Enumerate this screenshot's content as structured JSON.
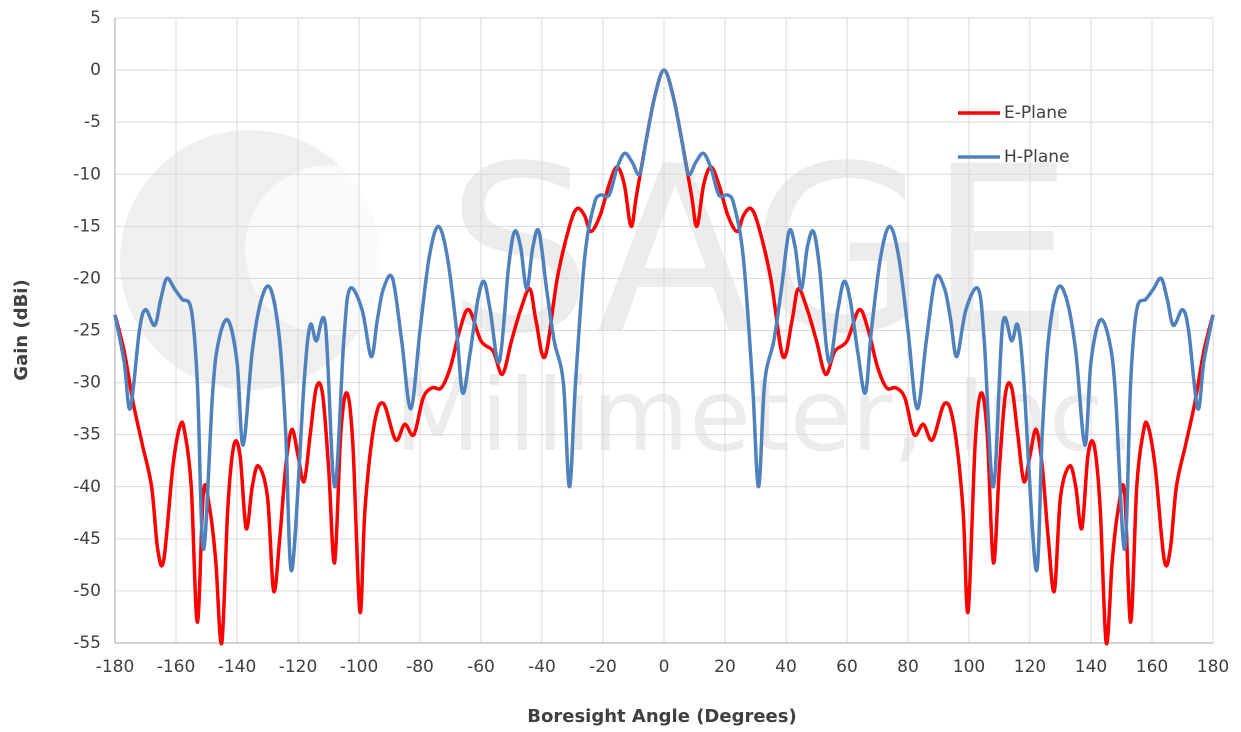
{
  "chart_data": {
    "type": "line",
    "y_label": "Gain (dBi)",
    "x_label": "Boresight Angle (Degrees)",
    "watermark": [
      "SAGE",
      "Millimeter, Inc."
    ],
    "xlim": [
      -180,
      180
    ],
    "xticks": [
      -180,
      -160,
      -140,
      -120,
      -100,
      -80,
      -60,
      -40,
      -20,
      0,
      20,
      40,
      60,
      80,
      100,
      120,
      140,
      160,
      180
    ],
    "ylim": [
      -55,
      5
    ],
    "yticks": [
      5,
      0,
      -5,
      -10,
      -15,
      -20,
      -25,
      -30,
      -35,
      -40,
      -45,
      -50,
      -55
    ],
    "grid": true,
    "legend": "upper right",
    "series": [
      {
        "name": "E-Plane",
        "color": "#ff0000",
        "x": [
          -180,
          -177,
          -174,
          -171,
          -168,
          -166,
          -164,
          -161,
          -158.5,
          -157,
          -155,
          -153,
          -151,
          -149,
          -147,
          -145,
          -143,
          -141,
          -139,
          -137,
          -135,
          -133,
          -130,
          -128,
          -126,
          -124,
          -122,
          -120,
          -118,
          -116,
          -114,
          -112,
          -110,
          -108,
          -106,
          -104,
          -102,
          -99.7,
          -98,
          -95,
          -92,
          -88,
          -85,
          -82,
          -79,
          -76,
          -73,
          -70,
          -67,
          -64,
          -60,
          -56,
          -53,
          -50,
          -47,
          -44,
          -42,
          -39,
          -35,
          -31,
          -28.5,
          -26,
          -24,
          -21,
          -18,
          -15.4,
          -13,
          -10.8,
          -9,
          -6,
          -3,
          0,
          3,
          6,
          9,
          10.8,
          13,
          15.4,
          18,
          21,
          24,
          26,
          28.5,
          31,
          35,
          39,
          42,
          44,
          47,
          50,
          53,
          56,
          60,
          64,
          67,
          70,
          73,
          76,
          79,
          82,
          85,
          88,
          92,
          95,
          98,
          99.7,
          102,
          104,
          106,
          108,
          110,
          112,
          114,
          116,
          118,
          120,
          122,
          124,
          126,
          128,
          130,
          133,
          135,
          137,
          139,
          141,
          143,
          145,
          147,
          149,
          151,
          153,
          155,
          157,
          158.5,
          161,
          164,
          166,
          168,
          171,
          174,
          177,
          180
        ],
        "values": [
          -23.5,
          -27,
          -32,
          -36,
          -40,
          -46,
          -47,
          -38,
          -34,
          -35,
          -40,
          -53,
          -40.5,
          -42,
          -47,
          -55,
          -42,
          -36,
          -37,
          -44,
          -40,
          -38,
          -41,
          -50,
          -45,
          -38,
          -34.5,
          -37,
          -39.5,
          -35,
          -30.5,
          -31,
          -38,
          -47.3,
          -35,
          -31,
          -36,
          -52,
          -42,
          -34,
          -32,
          -35.5,
          -34,
          -35,
          -31.5,
          -30.5,
          -30.5,
          -28.5,
          -25,
          -23,
          -26,
          -27,
          -29.2,
          -26,
          -23,
          -21,
          -24,
          -27.5,
          -20,
          -15,
          -13.3,
          -14,
          -15.5,
          -14,
          -11,
          -9.3,
          -11,
          -15,
          -12,
          -7,
          -2.5,
          0,
          -2.5,
          -7,
          -12,
          -15,
          -11,
          -9.3,
          -11,
          -14,
          -15.5,
          -14,
          -13.3,
          -15,
          -20,
          -27.5,
          -24,
          -21,
          -23,
          -26,
          -29.2,
          -27,
          -26,
          -23,
          -25,
          -28.5,
          -30.5,
          -30.5,
          -31.5,
          -35,
          -34,
          -35.5,
          -32,
          -34,
          -42,
          -52,
          -36,
          -31,
          -35,
          -47.3,
          -38,
          -31,
          -30.5,
          -35,
          -39.5,
          -37,
          -34.5,
          -38,
          -45,
          -50,
          -41,
          -38,
          -40,
          -44,
          -37,
          -36,
          -42,
          -55,
          -47,
          -42,
          -40.5,
          -53,
          -40,
          -35,
          -34,
          -38,
          -47,
          -46,
          -40,
          -36,
          -32,
          -27,
          -23.5
        ]
      },
      {
        "name": "H-Plane",
        "color": "#4f81bd",
        "x": [
          -180,
          -177,
          -175,
          -172,
          -170,
          -167,
          -165,
          -163,
          -160.5,
          -158,
          -155,
          -153,
          -151,
          -148,
          -146,
          -143,
          -140,
          -138,
          -135,
          -132,
          -129,
          -126,
          -124,
          -122,
          -118,
          -116,
          -114,
          -111,
          -108,
          -105,
          -103,
          -99,
          -96,
          -94,
          -92,
          -89,
          -86,
          -83,
          -80,
          -77,
          -74,
          -71,
          -68,
          -66,
          -63.5,
          -61,
          -59,
          -57,
          -54,
          -51,
          -49,
          -47,
          -45,
          -43,
          -41,
          -38.5,
          -36,
          -33,
          -31,
          -29,
          -26,
          -23,
          -21,
          -18,
          -15.5,
          -13,
          -10.5,
          -8,
          -6,
          -3,
          0,
          3,
          6,
          8,
          10.5,
          13,
          15.5,
          18,
          21,
          23,
          26,
          29,
          31,
          33,
          36,
          38.5,
          41,
          43,
          45,
          47,
          49,
          51,
          54,
          57,
          59,
          61,
          63.5,
          66,
          68,
          71,
          74,
          77,
          80,
          83,
          86,
          89,
          92,
          94,
          96,
          99,
          103,
          105,
          108,
          111,
          114,
          116,
          118,
          122,
          124,
          126,
          129,
          132,
          135,
          138,
          140,
          143,
          146,
          148,
          151,
          153,
          155,
          158,
          160.5,
          163,
          165,
          167,
          170,
          172,
          175,
          177,
          180
        ],
        "values": [
          -23.5,
          -28,
          -32.5,
          -25,
          -23,
          -24.5,
          -22,
          -20,
          -21,
          -22,
          -23,
          -30,
          -46,
          -31,
          -26,
          -24,
          -28,
          -36,
          -27,
          -22,
          -21,
          -26,
          -35,
          -48,
          -30,
          -24.5,
          -26,
          -24.5,
          -40,
          -26,
          -21,
          -23,
          -27.5,
          -24,
          -21,
          -20,
          -26,
          -32.5,
          -25,
          -18,
          -15,
          -18,
          -25,
          -31,
          -27,
          -22,
          -20.3,
          -23,
          -28,
          -19,
          -15.5,
          -17,
          -21,
          -17,
          -15.5,
          -21,
          -26,
          -30,
          -40,
          -30,
          -18,
          -13,
          -12,
          -12,
          -9.5,
          -8,
          -8.8,
          -10,
          -7,
          -2.5,
          0,
          -2.5,
          -7,
          -10,
          -8.8,
          -8,
          -9.5,
          -12,
          -12,
          -13,
          -18,
          -30,
          -40,
          -30,
          -26,
          -21,
          -15.5,
          -17,
          -21,
          -17,
          -15.5,
          -19,
          -28,
          -23,
          -20.3,
          -22,
          -27,
          -31,
          -25,
          -18,
          -15,
          -18,
          -25,
          -32.5,
          -26,
          -20,
          -21,
          -24,
          -27.5,
          -23,
          -21,
          -26,
          -40,
          -24.5,
          -26,
          -24.5,
          -30,
          -48,
          -35,
          -26,
          -21,
          -22,
          -27,
          -36,
          -28,
          -24,
          -26,
          -31,
          -46,
          -30,
          -23,
          -22,
          -21,
          -20,
          -22,
          -24.5,
          -23,
          -25,
          -32.5,
          -28,
          -23.5
        ]
      }
    ]
  }
}
